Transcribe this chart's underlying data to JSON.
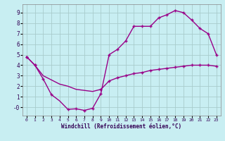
{
  "background_color": "#c8eef2",
  "grid_color": "#a8cccc",
  "line_color": "#990088",
  "xlabel": "Windchill (Refroidissement éolien,°C)",
  "xlim": [
    -0.5,
    23.5
  ],
  "ylim": [
    -0.8,
    9.8
  ],
  "xticks": [
    0,
    1,
    2,
    3,
    4,
    5,
    6,
    7,
    8,
    9,
    10,
    11,
    12,
    13,
    14,
    15,
    16,
    17,
    18,
    19,
    20,
    21,
    22,
    23
  ],
  "yticks": [
    0,
    1,
    2,
    3,
    4,
    5,
    6,
    7,
    8,
    9
  ],
  "ytick_labels": [
    "-0",
    "1",
    "2",
    "3",
    "4",
    "5",
    "6",
    "7",
    "8",
    "9"
  ],
  "linewidth": 1.0,
  "markersize": 3.5,
  "marker": "+",
  "line1_x": [
    0,
    1,
    2,
    3,
    4,
    5,
    6,
    7,
    8,
    9
  ],
  "line1_y": [
    4.8,
    4.0,
    2.7,
    1.2,
    0.6,
    -0.2,
    -0.15,
    -0.3,
    -0.1,
    1.3
  ],
  "line2_x": [
    9,
    10,
    11,
    12,
    13,
    14,
    15,
    16,
    17,
    18,
    19,
    20,
    21,
    22,
    23
  ],
  "line2_y": [
    1.3,
    5.0,
    5.5,
    6.3,
    7.7,
    7.7,
    7.7,
    8.5,
    8.8,
    9.2,
    9.0,
    8.3,
    7.5,
    7.0,
    5.0
  ],
  "line3_x": [
    0,
    1,
    2,
    3,
    4,
    5,
    6,
    7,
    8,
    9,
    10,
    11,
    12,
    13,
    14,
    15,
    16,
    17,
    18,
    19,
    20,
    21,
    22,
    23
  ],
  "line3_y": [
    4.8,
    4.0,
    3.0,
    2.6,
    2.2,
    2.0,
    1.7,
    1.6,
    1.5,
    1.7,
    2.5,
    2.8,
    3.0,
    3.2,
    3.3,
    3.5,
    3.6,
    3.7,
    3.8,
    3.9,
    4.0,
    4.0,
    4.0,
    3.9
  ],
  "markers1_x": [
    0,
    1,
    2,
    3,
    5,
    6,
    7,
    8,
    9
  ],
  "markers1_y": [
    4.8,
    4.0,
    2.7,
    1.2,
    -0.2,
    -0.15,
    -0.3,
    -0.1,
    1.3
  ],
  "markers2_x": [
    10,
    11,
    12,
    13,
    14,
    15,
    16,
    17,
    18,
    19,
    20,
    21,
    22,
    23
  ],
  "markers2_y": [
    5.0,
    5.5,
    6.3,
    7.7,
    7.7,
    7.7,
    8.5,
    8.8,
    9.2,
    9.0,
    8.3,
    7.5,
    7.0,
    5.0
  ],
  "markers3_x": [
    0,
    1,
    9,
    10,
    11,
    12,
    13,
    14,
    15,
    16,
    17,
    18,
    19,
    20,
    21,
    22,
    23
  ],
  "markers3_y": [
    4.8,
    4.0,
    1.7,
    2.5,
    2.8,
    3.0,
    3.2,
    3.3,
    3.5,
    3.6,
    3.7,
    3.8,
    3.9,
    4.0,
    4.0,
    4.0,
    3.9
  ]
}
